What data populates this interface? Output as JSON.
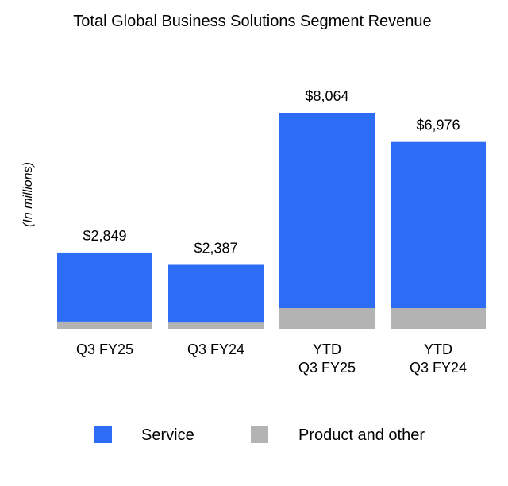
{
  "chart_data": {
    "type": "bar",
    "stacked": true,
    "title": "Total Global Business Solutions Segment Revenue",
    "xlabel": "",
    "ylabel": "(In millions)",
    "categories": [
      [
        "Q3 FY25"
      ],
      [
        "Q3 FY24"
      ],
      [
        "YTD",
        "Q3 FY25"
      ],
      [
        "YTD",
        "Q3 FY24"
      ]
    ],
    "series": [
      {
        "name": "Product and other",
        "color": "#b3b3b3",
        "values": [
          270,
          230,
          770,
          770
        ]
      },
      {
        "name": "Service",
        "color": "#2d6df6",
        "values": [
          2579,
          2157,
          7294,
          6206
        ]
      }
    ],
    "totals": [
      2849,
      2387,
      8064,
      6976
    ],
    "total_labels": [
      "$2,849",
      "$2,387",
      "$8,064",
      "$6,976"
    ],
    "ylim": [
      0,
      8064
    ],
    "grid": false,
    "legend": {
      "position": "bottom",
      "entries": [
        "Service",
        "Product and other"
      ]
    }
  }
}
